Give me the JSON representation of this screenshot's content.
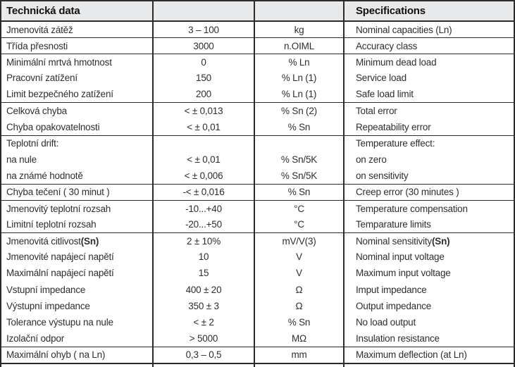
{
  "colors": {
    "border": "#2b2b2b",
    "header_bg": "#e8e9ea",
    "text": "#2e2e2e"
  },
  "table": {
    "header": {
      "col1": "Technická data",
      "col2": "",
      "col3": "",
      "col4": "Specifications"
    },
    "rows": [
      {
        "cz": "Jmenovitá zátěž",
        "cz_bold": "",
        "value": "3 – 100",
        "unit": "kg",
        "en": "Nominal capacities (Ln)",
        "en_bold": "",
        "group_start": true
      },
      {
        "cz": "Třída přesnosti",
        "cz_bold": "",
        "value": "3000",
        "unit": "n.OIML",
        "en": "Accuracy class",
        "en_bold": "",
        "group_start": true
      },
      {
        "cz": "Minimální mrtvá hmotnost",
        "cz_bold": "",
        "value": "0",
        "unit": "% Ln",
        "en": "Minimum dead load",
        "en_bold": "",
        "group_start": true
      },
      {
        "cz": "Pracovní zatížení",
        "cz_bold": "",
        "value": "150",
        "unit": "% Ln (1)",
        "en": "Service load",
        "en_bold": "",
        "group_start": false
      },
      {
        "cz": "Limit bezpečného zatížení",
        "cz_bold": "",
        "value": "200",
        "unit": "% Ln (1)",
        "en": "Safe load limit",
        "en_bold": "",
        "group_start": false
      },
      {
        "cz": "Celková chyba",
        "cz_bold": "",
        "value": "< ± 0,013",
        "unit": "% Sn (2)",
        "en": "Total error",
        "en_bold": "",
        "group_start": true
      },
      {
        "cz": "Chyba opakovatelnosti",
        "cz_bold": "",
        "value": "< ± 0,01",
        "unit": "% Sn",
        "en": "Repeatability error",
        "en_bold": "",
        "group_start": false
      },
      {
        "cz": "Teplotní drift:",
        "cz_bold": "",
        "value": "",
        "unit": "",
        "en": "Temperature effect:",
        "en_bold": "",
        "group_start": true
      },
      {
        "cz": "na nule",
        "cz_bold": "",
        "value": "< ± 0,01",
        "unit": "% Sn/5K",
        "en": "on zero",
        "en_bold": "",
        "group_start": false
      },
      {
        "cz": "na známé hodnotě",
        "cz_bold": "",
        "value": "< ± 0,006",
        "unit": "% Sn/5K",
        "en": "on sensitivity",
        "en_bold": "",
        "group_start": false
      },
      {
        "cz": "Chyba tečení ( 30 minut )",
        "cz_bold": "",
        "value": "-< ± 0,016",
        "unit": "% Sn",
        "en": "Creep error (30 minutes )",
        "en_bold": "",
        "group_start": true
      },
      {
        "cz": "Jmenovitý teplotní rozsah",
        "cz_bold": "",
        "value": "-10...+40",
        "unit": "°C",
        "en": "Temperature compensation",
        "en_bold": "",
        "group_start": true
      },
      {
        "cz": "Limitní teplotní rozsah",
        "cz_bold": "",
        "value": "-20...+50",
        "unit": "°C",
        "en": "Temparature limits",
        "en_bold": "",
        "group_start": false
      },
      {
        "cz": "Jmenovitá citlivost ",
        "cz_bold": "(Sn)",
        "value": "2 ± 10%",
        "unit": "mV/V(3)",
        "en": "Nominal sensitivity ",
        "en_bold": "(Sn)",
        "group_start": true
      },
      {
        "cz": "Jmenovité napájecí napětí",
        "cz_bold": "",
        "value": "10",
        "unit": "V",
        "en": "Nominal input voltage",
        "en_bold": "",
        "group_start": false
      },
      {
        "cz": "Maximální napájecí napětí",
        "cz_bold": "",
        "value": "15",
        "unit": "V",
        "en": "Maximum input voltage",
        "en_bold": "",
        "group_start": false
      },
      {
        "cz": "Vstupní impedance",
        "cz_bold": "",
        "value": "400 ± 20",
        "unit": "Ω",
        "en": "Imput impedance",
        "en_bold": "",
        "group_start": false
      },
      {
        "cz": "Výstupní impedance",
        "cz_bold": "",
        "value": "350 ± 3",
        "unit": "Ω",
        "en": "Output impedance",
        "en_bold": "",
        "group_start": false
      },
      {
        "cz": "Tolerance výstupu na nule",
        "cz_bold": "",
        "value": "< ± 2",
        "unit": "% Sn",
        "en": "No load output",
        "en_bold": "",
        "group_start": false
      },
      {
        "cz": "Izolační odpor",
        "cz_bold": "",
        "value": "> 5000",
        "unit": "MΩ",
        "en": "Insulation resistance",
        "en_bold": "",
        "group_start": false
      },
      {
        "cz": "Maximální ohyb ( na Ln)",
        "cz_bold": "",
        "value": "0,3 – 0,5",
        "unit": "mm",
        "en": "Maximum deflection (at Ln)",
        "en_bold": "",
        "group_start": true
      }
    ]
  }
}
